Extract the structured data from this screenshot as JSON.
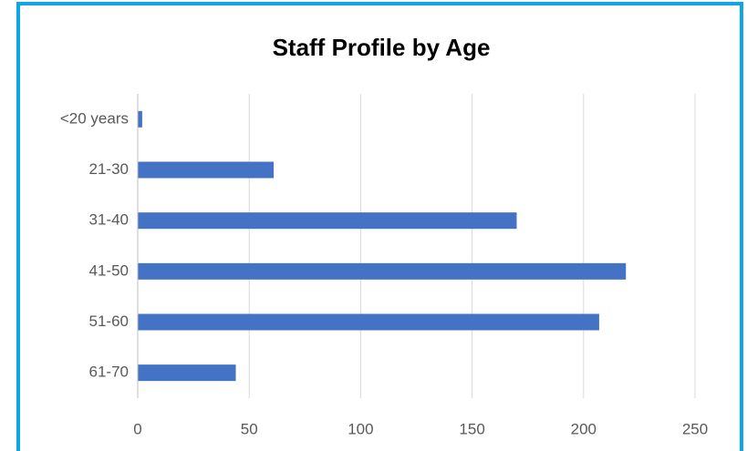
{
  "chart_data": {
    "type": "bar",
    "orientation": "horizontal",
    "title": "Staff Profile by Age",
    "categories": [
      "<20 years",
      "21-30",
      "31-40",
      "41-50",
      "51-60",
      "61-70"
    ],
    "values": [
      2,
      61,
      170,
      219,
      207,
      44
    ],
    "color": "#4472c4",
    "xlim": [
      0,
      250
    ],
    "xticks": [
      0,
      50,
      100,
      150,
      200,
      250
    ],
    "grid": true
  }
}
